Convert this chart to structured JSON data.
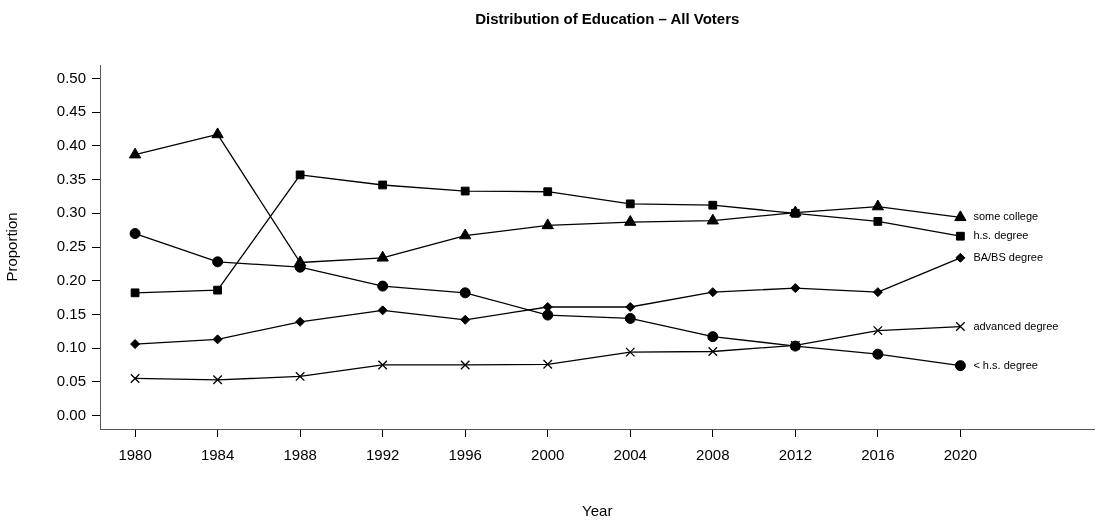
{
  "chart_data": {
    "type": "line",
    "title": "Distribution of Education – All Voters",
    "xlabel": "Year",
    "ylabel": "Proportion",
    "x": [
      1980,
      1984,
      1988,
      1992,
      1996,
      2000,
      2004,
      2008,
      2012,
      2016,
      2020
    ],
    "xlim": [
      1978.3,
      2026.5
    ],
    "xticks": [
      1980,
      1984,
      1988,
      1992,
      1996,
      2000,
      2004,
      2008,
      2012,
      2016,
      2020
    ],
    "ylim": [
      -0.02,
      0.52
    ],
    "yticks": [
      {
        "value": 0,
        "label": "0.00"
      },
      {
        "value": 0.05,
        "label": "0.05"
      },
      {
        "value": 0.1,
        "label": "0.10"
      },
      {
        "value": 0.15,
        "label": "0.15"
      },
      {
        "value": 0.2,
        "label": "0.20"
      },
      {
        "value": 0.25,
        "label": "0.25"
      },
      {
        "value": 0.3,
        "label": "0.30"
      },
      {
        "value": 0.35,
        "label": "0.35"
      },
      {
        "value": 0.4,
        "label": "0.40"
      },
      {
        "value": 0.45,
        "label": "0.45"
      },
      {
        "value": 0.5,
        "label": "0.50"
      }
    ],
    "grid": false,
    "legend": false,
    "line_style": "solid",
    "series": [
      {
        "name": "some college",
        "color": "#000000",
        "marker": "triangle",
        "values": [
          0.387,
          0.417,
          0.227,
          0.234,
          0.267,
          0.282,
          0.287,
          0.289,
          0.301,
          0.31,
          0.294
        ]
      },
      {
        "name": "h.s. degree",
        "color": "#000000",
        "marker": "square",
        "values": [
          0.182,
          0.186,
          0.357,
          0.342,
          0.333,
          0.332,
          0.314,
          0.312,
          0.3,
          0.288,
          0.266
        ]
      },
      {
        "name": "BA/BS degree",
        "color": "#000000",
        "marker": "diamond",
        "values": [
          0.106,
          0.113,
          0.139,
          0.156,
          0.142,
          0.161,
          0.161,
          0.183,
          0.189,
          0.183,
          0.234
        ]
      },
      {
        "name": "advanced degree",
        "color": "#000000",
        "marker": "cross",
        "values": [
          0.055,
          0.053,
          0.058,
          0.075,
          0.075,
          0.076,
          0.094,
          0.095,
          0.104,
          0.126,
          0.132
        ]
      },
      {
        "name": "< h.s. degree",
        "color": "#000000",
        "marker": "circle",
        "values": [
          0.27,
          0.228,
          0.22,
          0.192,
          0.182,
          0.149,
          0.144,
          0.117,
          0.103,
          0.091,
          0.074
        ]
      }
    ]
  }
}
